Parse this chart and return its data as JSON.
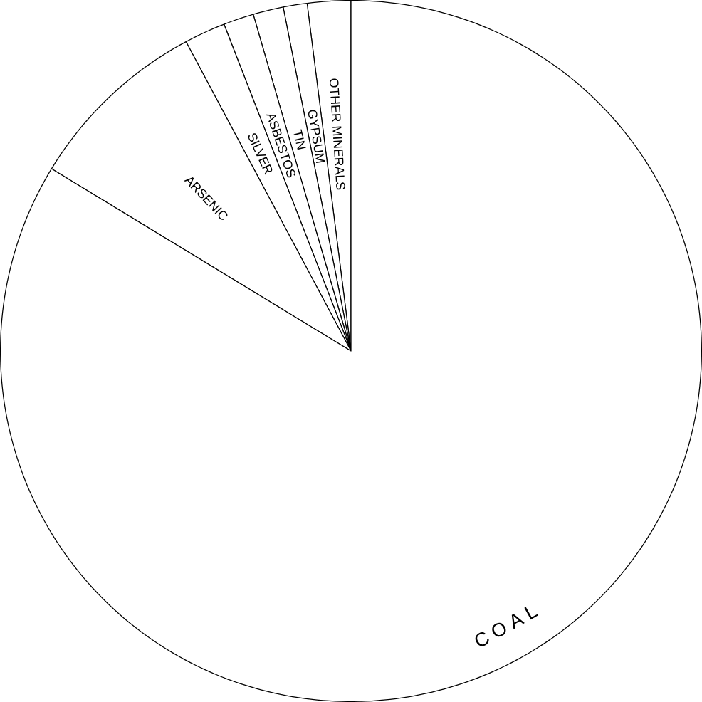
{
  "chart_data": {
    "type": "pie",
    "categories": [
      "OTHER MINERALS",
      "GYPSUM",
      "TIN",
      "ASBESTOS",
      "SILVER",
      "ARSENIC",
      "C O A L"
    ],
    "values": [
      2.0,
      1.1,
      1.4,
      1.4,
      1.9,
      8.5,
      83.7
    ],
    "colors": [
      "#ffffff",
      "#ffffff",
      "#ffffff",
      "#ffffff",
      "#ffffff",
      "#ffffff",
      "#ffffff"
    ]
  }
}
